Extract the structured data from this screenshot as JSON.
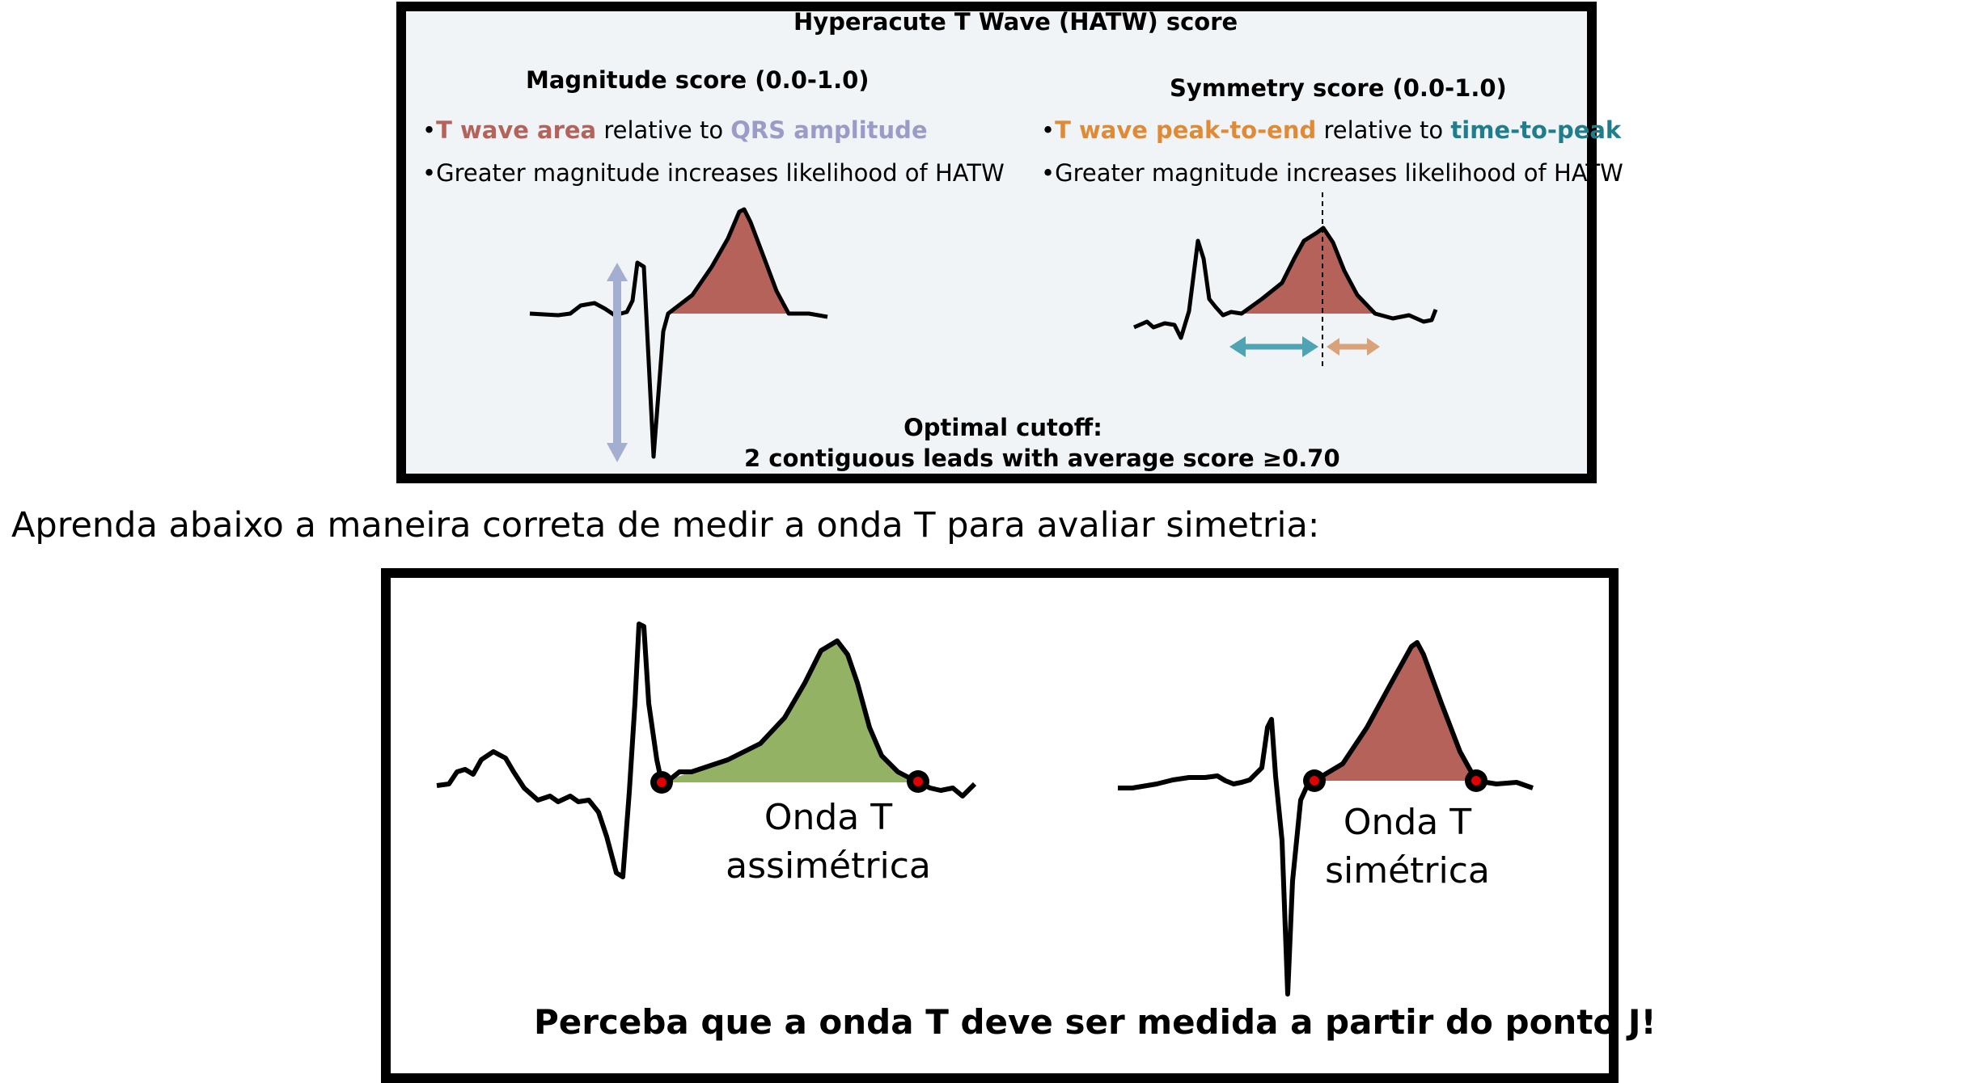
{
  "top_panel": {
    "title": "Hyperacute T Wave (HATW) score",
    "magnitude": {
      "heading": "Magnitude score (0.0-1.0)",
      "bullet1": {
        "t_wave": "T wave area",
        "mid": " relative to ",
        "qrs": "QRS amplitude"
      },
      "bullet2": "Greater magnitude increases likelihood of HATW"
    },
    "symmetry": {
      "heading": "Symmetry score (0.0-1.0)",
      "bullet1": {
        "peak_end": "T wave peak-to-end",
        "mid": " relative to ",
        "ttp": "time-to-peak"
      },
      "bullet2": "Greater magnitude increases likelihood of HATW"
    },
    "cutoff_line1": "Optimal cutoff:",
    "cutoff_line2": "2 contiguous leads with average score ≥0.70"
  },
  "instruction": "Aprenda abaixo a maneira correta de medir a onda T para avaliar simetria:",
  "bottom_panel": {
    "asym_line1": "Onda T",
    "asym_line2": "assimétrica",
    "sym_line1": "Onda T",
    "sym_line2": "simétrica",
    "note": "Perceba que a onda T deve ser medida a partir do ponto J!"
  },
  "colors": {
    "t_wave_area": "#b5625a",
    "qrs_amplitude": "#9b9bc8",
    "peak_to_end": "#e08a35",
    "time_to_peak": "#1f7d8c",
    "arrow_teal": "#4fa3b3",
    "arrow_tan": "#d9a27a",
    "green_fill": "#93b264",
    "marker_red": "#e00000"
  }
}
